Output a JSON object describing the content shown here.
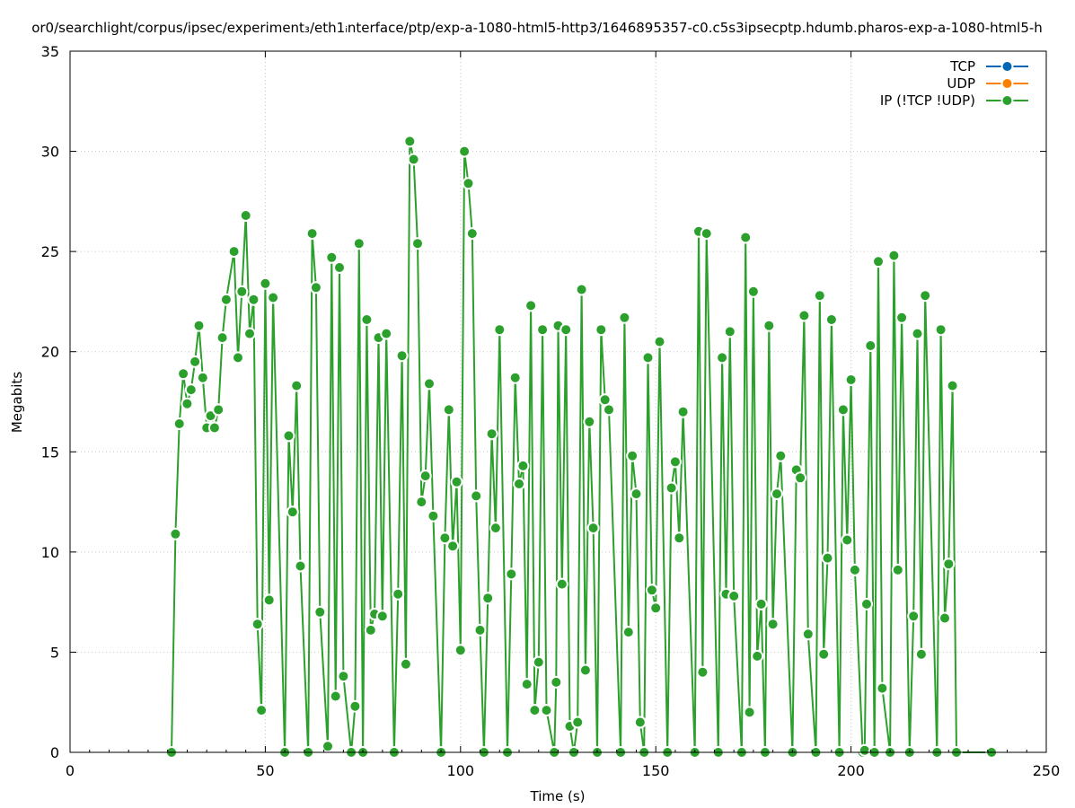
{
  "chart_data": {
    "type": "line",
    "title": "or0/searchlight/corpus/ipsec/experiment₃/eth1ᵢnterface/ptp/exp-a-1080-html5-http3/1646895357-c0.c5s3ipsecptp.hdumb.pharos-exp-a-1080-html5-h",
    "xlabel": "Time (s)",
    "ylabel": "Megabits",
    "xlim": [
      0,
      250
    ],
    "ylim": [
      0,
      35
    ],
    "x_ticks": [
      "0",
      "50",
      "100",
      "150",
      "200",
      "250"
    ],
    "y_ticks": [
      "0",
      "5",
      "10",
      "15",
      "20",
      "25",
      "30",
      "35"
    ],
    "grid": true,
    "legend_position": "top-right",
    "series": [
      {
        "name": "TCP",
        "color": "#0066b3",
        "points": []
      },
      {
        "name": "UDP",
        "color": "#ff8000",
        "points": []
      },
      {
        "name": "IP (!TCP  !UDP)",
        "color": "#2ca02c",
        "points": [
          [
            26,
            0
          ],
          [
            27,
            10.9
          ],
          [
            28,
            16.4
          ],
          [
            29,
            18.9
          ],
          [
            30,
            17.4
          ],
          [
            31,
            18.1
          ],
          [
            32,
            19.5
          ],
          [
            33,
            21.3
          ],
          [
            34,
            18.7
          ],
          [
            35,
            16.2
          ],
          [
            36,
            16.8
          ],
          [
            37,
            16.2
          ],
          [
            38,
            17.1
          ],
          [
            39,
            20.7
          ],
          [
            40,
            22.6
          ],
          [
            42,
            25.0
          ],
          [
            43,
            19.7
          ],
          [
            44,
            23.0
          ],
          [
            45,
            26.8
          ],
          [
            46,
            20.9
          ],
          [
            47,
            22.6
          ],
          [
            48,
            6.4
          ],
          [
            49,
            2.1
          ],
          [
            50,
            23.4
          ],
          [
            51,
            7.6
          ],
          [
            52,
            22.7
          ],
          [
            55,
            0
          ],
          [
            56,
            15.8
          ],
          [
            57,
            12.0
          ],
          [
            58,
            18.3
          ],
          [
            59,
            9.3
          ],
          [
            61,
            0
          ],
          [
            62,
            25.9
          ],
          [
            63,
            23.2
          ],
          [
            64,
            7.0
          ],
          [
            66,
            0.3
          ],
          [
            67,
            24.7
          ],
          [
            68,
            2.8
          ],
          [
            69,
            24.2
          ],
          [
            70,
            3.8
          ],
          [
            72,
            0
          ],
          [
            73,
            2.3
          ],
          [
            74,
            25.4
          ],
          [
            75,
            0
          ],
          [
            76,
            21.6
          ],
          [
            77,
            6.1
          ],
          [
            78,
            6.9
          ],
          [
            79,
            20.7
          ],
          [
            80,
            6.8
          ],
          [
            81,
            20.9
          ],
          [
            83,
            0
          ],
          [
            84,
            7.9
          ],
          [
            85,
            19.8
          ],
          [
            86,
            4.4
          ],
          [
            87,
            30.5
          ],
          [
            88,
            29.6
          ],
          [
            89,
            25.4
          ],
          [
            90,
            12.5
          ],
          [
            91,
            13.8
          ],
          [
            92,
            18.4
          ],
          [
            93,
            11.8
          ],
          [
            95,
            0
          ],
          [
            96,
            10.7
          ],
          [
            97,
            17.1
          ],
          [
            98,
            10.3
          ],
          [
            99,
            13.5
          ],
          [
            100,
            5.1
          ],
          [
            101,
            30.0
          ],
          [
            102,
            28.4
          ],
          [
            103,
            25.9
          ],
          [
            104,
            12.8
          ],
          [
            105,
            6.1
          ],
          [
            106,
            0
          ],
          [
            107,
            7.7
          ],
          [
            108,
            15.9
          ],
          [
            109,
            11.2
          ],
          [
            110,
            21.1
          ],
          [
            112,
            0
          ],
          [
            113,
            8.9
          ],
          [
            114,
            18.7
          ],
          [
            115,
            13.4
          ],
          [
            116,
            14.3
          ],
          [
            117,
            3.4
          ],
          [
            118,
            22.3
          ],
          [
            119,
            2.1
          ],
          [
            120,
            4.5
          ],
          [
            121,
            21.1
          ],
          [
            122,
            2.1
          ],
          [
            124,
            0
          ],
          [
            124.5,
            3.5
          ],
          [
            125,
            21.3
          ],
          [
            126,
            8.4
          ],
          [
            127,
            21.1
          ],
          [
            128,
            1.3
          ],
          [
            129,
            0
          ],
          [
            130,
            1.5
          ],
          [
            131,
            23.1
          ],
          [
            132,
            4.1
          ],
          [
            133,
            16.5
          ],
          [
            134,
            11.2
          ],
          [
            135,
            0
          ],
          [
            136,
            21.1
          ],
          [
            137,
            17.6
          ],
          [
            138,
            17.1
          ],
          [
            141,
            0
          ],
          [
            142,
            21.7
          ],
          [
            143,
            6.0
          ],
          [
            144,
            14.8
          ],
          [
            145,
            12.9
          ],
          [
            146,
            1.5
          ],
          [
            147,
            0
          ],
          [
            148,
            19.7
          ],
          [
            149,
            8.1
          ],
          [
            150,
            7.2
          ],
          [
            151,
            20.5
          ],
          [
            153,
            0
          ],
          [
            154,
            13.2
          ],
          [
            155,
            14.5
          ],
          [
            156,
            10.7
          ],
          [
            157,
            17.0
          ],
          [
            160,
            0
          ],
          [
            161,
            26.0
          ],
          [
            162,
            4.0
          ],
          [
            163,
            25.9
          ],
          [
            166,
            0
          ],
          [
            167,
            19.7
          ],
          [
            168,
            7.9
          ],
          [
            169,
            21.0
          ],
          [
            170,
            7.8
          ],
          [
            172,
            0
          ],
          [
            173,
            25.7
          ],
          [
            174,
            2.0
          ],
          [
            175,
            23.0
          ],
          [
            176,
            4.8
          ],
          [
            177,
            7.4
          ],
          [
            178,
            0
          ],
          [
            179,
            21.3
          ],
          [
            180,
            6.4
          ],
          [
            181,
            12.9
          ],
          [
            182,
            14.8
          ],
          [
            185,
            0
          ],
          [
            186,
            14.1
          ],
          [
            187,
            13.7
          ],
          [
            188,
            21.8
          ],
          [
            189,
            5.9
          ],
          [
            191,
            0
          ],
          [
            192,
            22.8
          ],
          [
            193,
            4.9
          ],
          [
            194,
            9.7
          ],
          [
            195,
            21.6
          ],
          [
            197,
            0
          ],
          [
            198,
            17.1
          ],
          [
            199,
            10.6
          ],
          [
            200,
            18.6
          ],
          [
            201,
            9.1
          ],
          [
            203,
            0
          ],
          [
            203.5,
            0.1
          ],
          [
            204,
            7.4
          ],
          [
            205,
            20.3
          ],
          [
            206,
            0
          ],
          [
            207,
            24.5
          ],
          [
            208,
            3.2
          ],
          [
            210,
            0
          ],
          [
            211,
            24.8
          ],
          [
            212,
            9.1
          ],
          [
            213,
            21.7
          ],
          [
            215,
            0
          ],
          [
            216,
            6.8
          ],
          [
            217,
            20.9
          ],
          [
            218,
            4.9
          ],
          [
            219,
            22.8
          ],
          [
            222,
            0
          ],
          [
            223,
            21.1
          ],
          [
            224,
            6.7
          ],
          [
            225,
            9.4
          ],
          [
            226,
            18.3
          ],
          [
            227,
            0
          ],
          [
            236,
            0
          ]
        ]
      }
    ]
  }
}
